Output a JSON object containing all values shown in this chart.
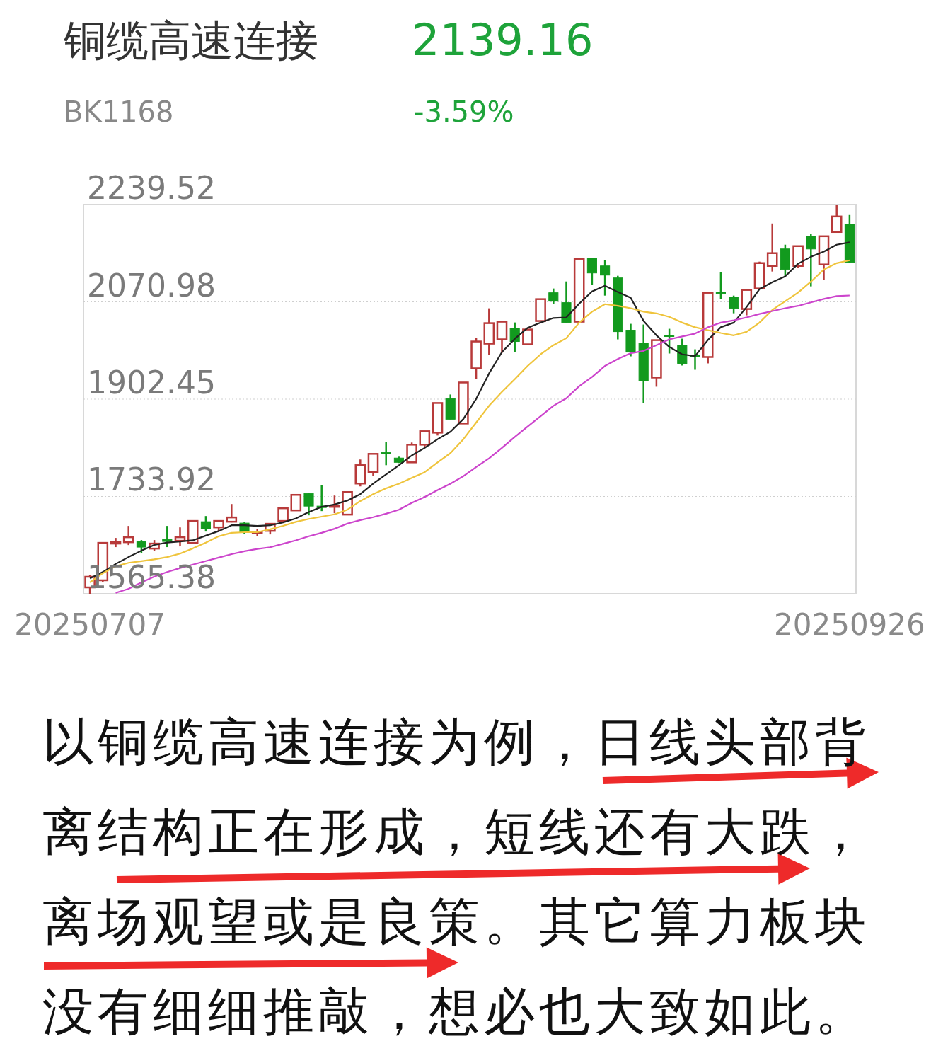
{
  "chart_data": {
    "type": "candlestick",
    "title": "铜缆高速连接",
    "subtitle": "BK1168",
    "annotations": [
      "2139.16",
      "-3.59%",
      "以铜缆高速连接为例，日线头部背离结构正在形成，短线还有大跌，离场观望或是良策。其它算力板块没有细细推敲，想必也大致如此。"
    ],
    "categories": [
      "20250707",
      null,
      null,
      null,
      null,
      null,
      null,
      null,
      null,
      null,
      null,
      null,
      null,
      null,
      null,
      null,
      null,
      null,
      null,
      null,
      null,
      null,
      null,
      null,
      null,
      null,
      null,
      null,
      null,
      null,
      null,
      null,
      null,
      null,
      null,
      null,
      null,
      null,
      null,
      null,
      null,
      null,
      null,
      null,
      null,
      null,
      null,
      null,
      null,
      null,
      null,
      null,
      null,
      null,
      null,
      null,
      null,
      null,
      null,
      "20250926"
    ],
    "ohlc": [
      [
        1576.4,
        1598.4,
        1565.38,
        1594.8
      ],
      [
        1588.7,
        1653.5,
        1586.2,
        1653.5
      ],
      [
        1652.3,
        1662.1,
        1646.2,
        1654.7
      ],
      [
        1654.7,
        1682.9,
        1649.8,
        1663.3
      ],
      [
        1656.0,
        1658.4,
        1636.4,
        1646.2
      ],
      [
        1643.7,
        1658.4,
        1640.1,
        1652.3
      ],
      [
        1659.6,
        1682.9,
        1646.2,
        1656.0
      ],
      [
        1657.2,
        1680.4,
        1647.4,
        1663.3
      ],
      [
        1653.5,
        1691.5,
        1653.5,
        1691.5
      ],
      [
        1690.2,
        1700.0,
        1673.1,
        1678.0
      ],
      [
        1680.4,
        1691.5,
        1673.1,
        1691.5
      ],
      [
        1690.2,
        1720.8,
        1689.0,
        1697.6
      ],
      [
        1687.8,
        1690.2,
        1669.4,
        1671.9
      ],
      [
        1670.6,
        1678.0,
        1665.8,
        1671.9
      ],
      [
        1674.3,
        1686.6,
        1668.2,
        1686.6
      ],
      [
        1691.5,
        1713.5,
        1690.2,
        1713.5
      ],
      [
        1709.8,
        1736.7,
        1709.8,
        1736.7
      ],
      [
        1739.2,
        1739.2,
        1701.2,
        1717.2
      ],
      [
        1717.2,
        1753.9,
        1708.6,
        1714.7
      ],
      [
        1715.9,
        1735.5,
        1704.9,
        1717.2
      ],
      [
        1702.5,
        1741.6,
        1702.5,
        1741.6
      ],
      [
        1756.3,
        1797.9,
        1751.4,
        1788.1
      ],
      [
        1775.9,
        1807.7,
        1769.8,
        1807.7
      ],
      [
        1810.2,
        1828.5,
        1788.1,
        1807.7
      ],
      [
        1800.4,
        1802.8,
        1791.8,
        1793.0
      ],
      [
        1793.0,
        1827.3,
        1793.0,
        1823.6
      ],
      [
        1823.6,
        1846.9,
        1818.7,
        1846.9
      ],
      [
        1844.4,
        1895.8,
        1839.5,
        1895.8
      ],
      [
        1903.2,
        1910.5,
        1867.7,
        1867.7
      ],
      [
        1860.3,
        1931.3,
        1860.3,
        1931.3
      ],
      [
        1955.8,
        2008.4,
        1937.4,
        2002.3
      ],
      [
        1998.6,
        2059.8,
        1979.0,
        2034.1
      ],
      [
        2006.0,
        2036.6,
        1982.7,
        2036.6
      ],
      [
        2025.6,
        2035.3,
        1983.9,
        2002.3
      ],
      [
        1997.4,
        2023.1,
        1997.4,
        2023.1
      ],
      [
        2037.8,
        2075.7,
        2037.8,
        2075.7
      ],
      [
        2086.7,
        2094.1,
        2067.2,
        2072.1
      ],
      [
        2069.6,
        2106.3,
        2035.3,
        2035.3
      ],
      [
        2036.6,
        2145.5,
        2036.6,
        2145.5
      ],
      [
        2146.7,
        2146.7,
        2100.2,
        2121.0
      ],
      [
        2133.2,
        2143.0,
        2081.8,
        2117.3
      ],
      [
        2112.4,
        2116.1,
        2006.0,
        2019.4
      ],
      [
        2021.9,
        2032.9,
        1976.6,
        1983.9
      ],
      [
        1999.8,
        2031.7,
        1895.8,
        1933.8
      ],
      [
        1939.9,
        2004.7,
        1924.0,
        2004.7
      ],
      [
        2013.3,
        2024.3,
        1981.5,
        2010.9
      ],
      [
        1995.0,
        2007.2,
        1960.7,
        1964.4
      ],
      [
        1977.8,
        1988.8,
        1953.3,
        1975.4
      ],
      [
        1975.4,
        2086.7,
        1964.4,
        2086.7
      ],
      [
        2088.0,
        2122.2,
        2075.7,
        2085.5
      ],
      [
        2079.4,
        2081.8,
        2051.2,
        2059.8
      ],
      [
        2058.6,
        2091.6,
        2047.6,
        2091.6
      ],
      [
        2094.1,
        2140.6,
        2094.1,
        2138.1
      ],
      [
        2133.2,
        2206.7,
        2123.5,
        2155.3
      ],
      [
        2162.6,
        2170.0,
        2114.9,
        2127.1
      ],
      [
        2133.2,
        2167.5,
        2129.6,
        2167.5
      ],
      [
        2184.6,
        2188.3,
        2097.8,
        2162.6
      ],
      [
        2135.7,
        2184.6,
        2108.8,
        2184.6
      ],
      [
        2192.0,
        2239.52,
        2192.0,
        2218.9
      ],
      [
        2205.4,
        2221.4,
        2139.16,
        2139.16
      ]
    ],
    "colors": [
      "#b83a3a",
      "#b83a3a",
      "#b83a3a",
      "#b83a3a",
      "#129a1e",
      "#b83a3a",
      "#129a1e",
      "#b83a3a",
      "#b83a3a",
      "#129a1e",
      "#b83a3a",
      "#b83a3a",
      "#129a1e",
      "#b83a3a",
      "#b83a3a",
      "#b83a3a",
      "#b83a3a",
      "#129a1e",
      "#129a1e",
      "#b83a3a",
      "#b83a3a",
      "#b83a3a",
      "#b83a3a",
      "#129a1e",
      "#129a1e",
      "#b83a3a",
      "#b83a3a",
      "#b83a3a",
      "#129a1e",
      "#b83a3a",
      "#b83a3a",
      "#b83a3a",
      "#b83a3a",
      "#129a1e",
      "#b83a3a",
      "#b83a3a",
      "#129a1e",
      "#129a1e",
      "#b83a3a",
      "#129a1e",
      "#129a1e",
      "#129a1e",
      "#129a1e",
      "#129a1e",
      "#b83a3a",
      "#129a1e",
      "#129a1e",
      "#129a1e",
      "#b83a3a",
      "#129a1e",
      "#129a1e",
      "#b83a3a",
      "#b83a3a",
      "#b83a3a",
      "#129a1e",
      "#b83a3a",
      "#129a1e",
      "#b83a3a",
      "#b83a3a",
      "#129a1e"
    ],
    "series": [
      {
        "type": "line",
        "color": "#222222",
        "values": [
          1592,
          1603,
          1617,
          1629,
          1640,
          1650,
          1654,
          1656,
          1658,
          1666,
          1674,
          1684,
          1684,
          1683,
          1684,
          1689,
          1696,
          1707,
          1716,
          1720,
          1727,
          1738,
          1756,
          1772,
          1788,
          1805,
          1818,
          1833,
          1846,
          1868,
          1903,
          1947,
          1984,
          2007,
          2026,
          2035,
          2043,
          2044,
          2068,
          2089,
          2099,
          2088,
          2078,
          2038,
          2013,
          1993,
          1980,
          1977,
          2005,
          2027,
          2035,
          2062,
          2093,
          2105,
          2115,
          2137,
          2149,
          2158,
          2170,
          2174
        ]
      },
      {
        "type": "line",
        "color": "#efc43c",
        "values": [
          1585,
          1601,
          1613,
          1619,
          1622,
          1625,
          1629,
          1635,
          1644,
          1654,
          1665,
          1671,
          1672,
          1672,
          1677,
          1683,
          1690,
          1695,
          1699,
          1703,
          1711,
          1726,
          1738,
          1748,
          1756,
          1766,
          1776,
          1793,
          1809,
          1833,
          1862,
          1891,
          1915,
          1937,
          1960,
          1980,
          1996,
          2008,
          2035,
          2054,
          2067,
          2064,
          2060,
          2054,
          2051,
          2045,
          2035,
          2027,
          2022,
          2017,
          2013,
          2019,
          2035,
          2057,
          2072,
          2087,
          2106,
          2127,
          2138,
          2143
        ]
      },
      {
        "type": "line",
        "color": "#cc44cc",
        "values": [
          null,
          null,
          1567,
          1574,
          1585,
          1595,
          1603,
          1610,
          1616,
          1622,
          1628,
          1634,
          1639,
          1643,
          1646,
          1652,
          1658,
          1665,
          1671,
          1678,
          1687,
          1693,
          1698,
          1704,
          1711,
          1723,
          1733,
          1745,
          1756,
          1769,
          1785,
          1800,
          1818,
          1837,
          1855,
          1873,
          1891,
          1904,
          1925,
          1941,
          1960,
          1972,
          1982,
          1986,
          1996,
          2006,
          2011,
          2016,
          2027,
          2035,
          2039,
          2044,
          2050,
          2055,
          2060,
          2064,
          2070,
          2076,
          2081,
          2082
        ]
      }
    ],
    "ylim": [
      1565.38,
      2239.52
    ],
    "yticks": [
      2239.52,
      2070.98,
      1902.45,
      1733.92,
      1565.38
    ],
    "grid": "y"
  }
}
